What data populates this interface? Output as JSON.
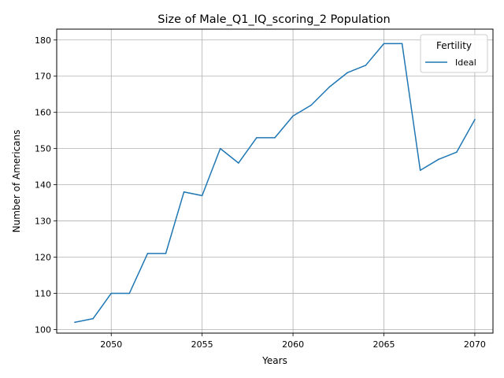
{
  "chart_data": {
    "type": "line",
    "title": "Size of Male_Q1_IQ_scoring_2 Population",
    "xlabel": "Years",
    "ylabel": "Number of Americans",
    "xlim": [
      2047,
      2071
    ],
    "ylim": [
      99,
      183
    ],
    "xticks": [
      2050,
      2055,
      2060,
      2065,
      2070
    ],
    "yticks": [
      100,
      110,
      120,
      130,
      140,
      150,
      160,
      170,
      180
    ],
    "grid": true,
    "legend": {
      "title": "Fertility",
      "placement": "top-right"
    },
    "series": [
      {
        "name": "Ideal",
        "color": "#1f77b4",
        "x": [
          2048,
          2049,
          2050,
          2051,
          2052,
          2053,
          2054,
          2055,
          2056,
          2057,
          2058,
          2059,
          2060,
          2061,
          2062,
          2063,
          2064,
          2065,
          2066,
          2067,
          2068,
          2069,
          2070
        ],
        "y": [
          102,
          103,
          110,
          110,
          121,
          121,
          138,
          137,
          150,
          146,
          153,
          153,
          159,
          162,
          167,
          171,
          173,
          179,
          179,
          144,
          147,
          149,
          158
        ]
      }
    ]
  }
}
